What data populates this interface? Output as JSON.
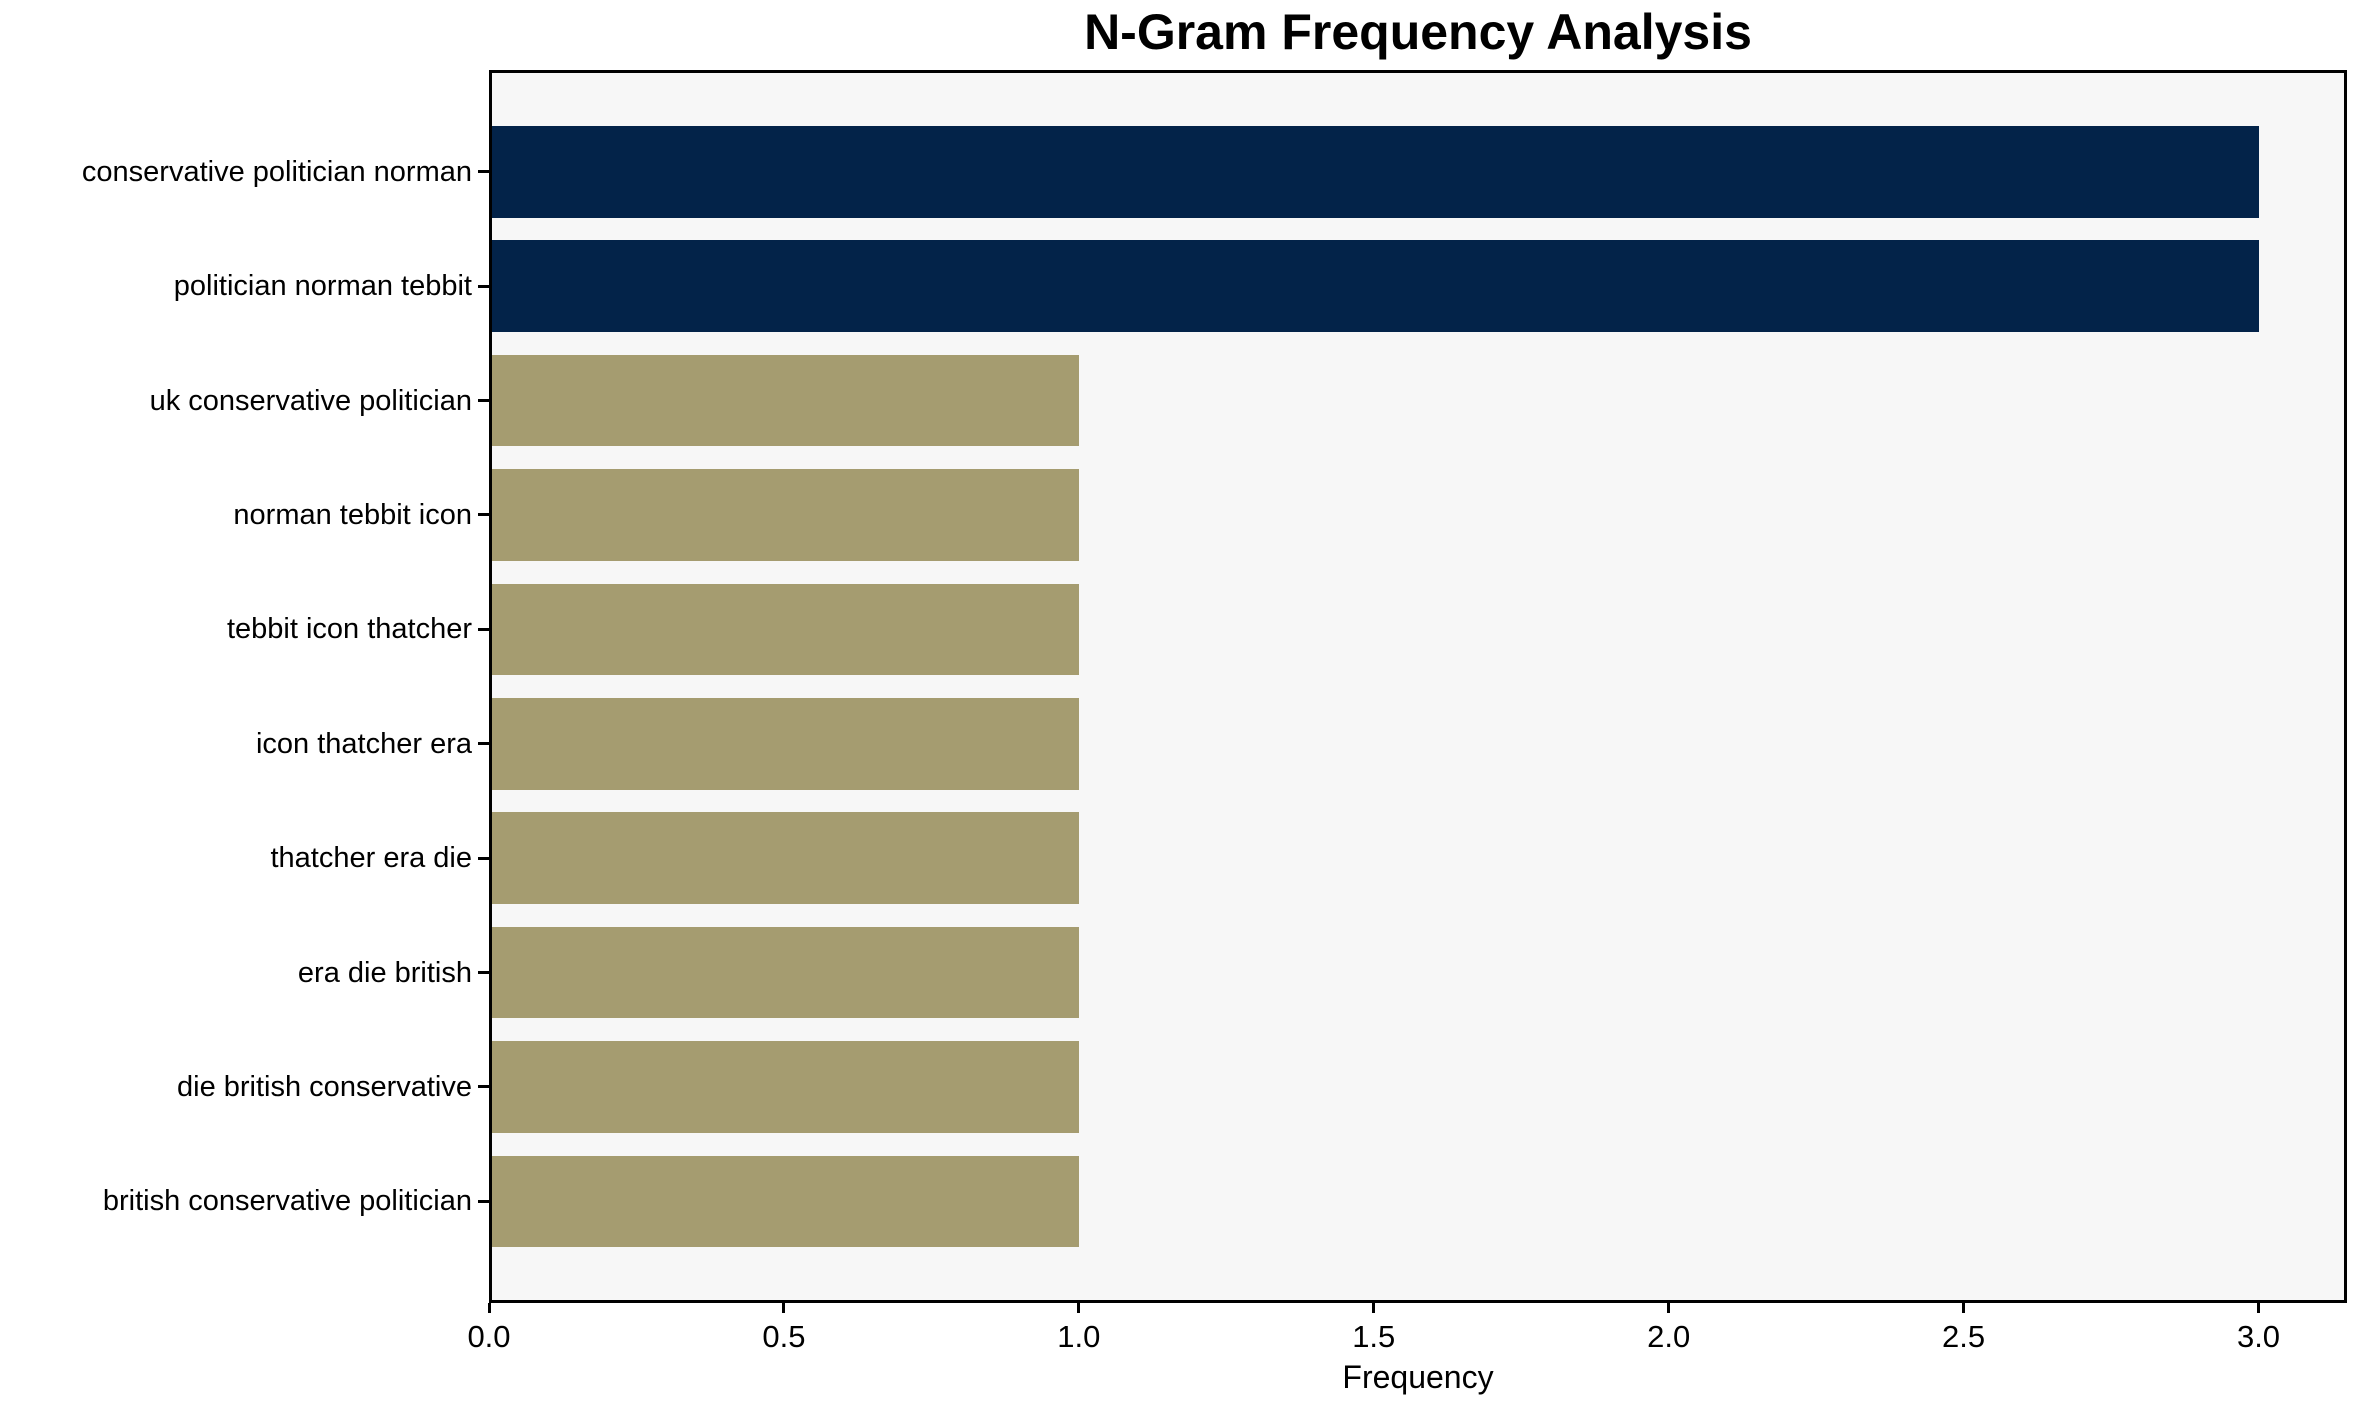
{
  "chart_data": {
    "type": "bar",
    "orientation": "horizontal",
    "title": "N-Gram Frequency Analysis",
    "xlabel": "Frequency",
    "ylabel": "",
    "categories": [
      "conservative politician norman",
      "politician norman tebbit",
      "uk conservative politician",
      "norman tebbit icon",
      "tebbit icon thatcher",
      "icon thatcher era",
      "thatcher era die",
      "era die british",
      "die british conservative",
      "british conservative politician"
    ],
    "values": [
      3,
      3,
      1,
      1,
      1,
      1,
      1,
      1,
      1,
      1
    ],
    "bar_colors": [
      "#032349",
      "#032349",
      "#A59C70",
      "#A59C70",
      "#A59C70",
      "#A59C70",
      "#A59C70",
      "#A59C70",
      "#A59C70",
      "#A59C70"
    ],
    "highlight_color": "#032349",
    "base_color": "#A59C70",
    "xlim": [
      0,
      3.15
    ],
    "xticks": [
      0,
      0.5,
      1,
      1.5,
      2,
      2.5,
      3
    ],
    "xtick_labels": [
      "0.0",
      "0.5",
      "1.0",
      "1.5",
      "2.0",
      "2.5",
      "3.0"
    ],
    "grid": false,
    "legend": false,
    "plot_background": "#F7F7F7",
    "figure_background": "#FFFFFF",
    "axis_color": "#000000",
    "text_color": "#000000"
  }
}
